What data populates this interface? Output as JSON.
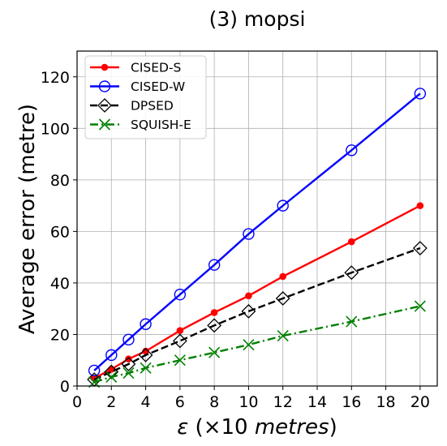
{
  "chart_data": {
    "type": "line",
    "title": "(3) mopsi",
    "xlabel_symbol": "ε",
    "xlabel_rest": " (×10 ",
    "xlabel_unit": "metres",
    "xlabel_close": ")",
    "ylabel": "Average error (metre)",
    "xlim": [
      0,
      21
    ],
    "ylim": [
      0,
      130
    ],
    "xticks": [
      0,
      2,
      4,
      6,
      8,
      10,
      12,
      14,
      16,
      18,
      20
    ],
    "yticks": [
      0,
      20,
      40,
      60,
      80,
      100,
      120
    ],
    "grid": true,
    "legend_position": "top-left",
    "x": [
      1,
      2,
      3,
      4,
      6,
      8,
      10,
      12,
      16,
      20
    ],
    "series": [
      {
        "name": "CISED-S",
        "color": "#ff0000",
        "marker": "dot",
        "dash": "solid",
        "values": [
          3,
          6.5,
          10.5,
          13.5,
          21.5,
          28.5,
          35,
          42.5,
          56,
          70
        ]
      },
      {
        "name": "CISED-W",
        "color": "#0000ff",
        "marker": "circle",
        "dash": "solid",
        "values": [
          6,
          12,
          18,
          24,
          35.5,
          47,
          59,
          70,
          91.5,
          113.5
        ]
      },
      {
        "name": "DPSED",
        "color": "#000000",
        "marker": "diamond",
        "dash": "dashed",
        "values": [
          2.5,
          5.5,
          8.5,
          12,
          17.5,
          23.5,
          29,
          34,
          44,
          53.5
        ]
      },
      {
        "name": "SQUISH-E",
        "color": "#008000",
        "marker": "x",
        "dash": "dashdot",
        "values": [
          1.5,
          3.5,
          5,
          7,
          10,
          13,
          16,
          19.5,
          25,
          31
        ]
      }
    ]
  }
}
